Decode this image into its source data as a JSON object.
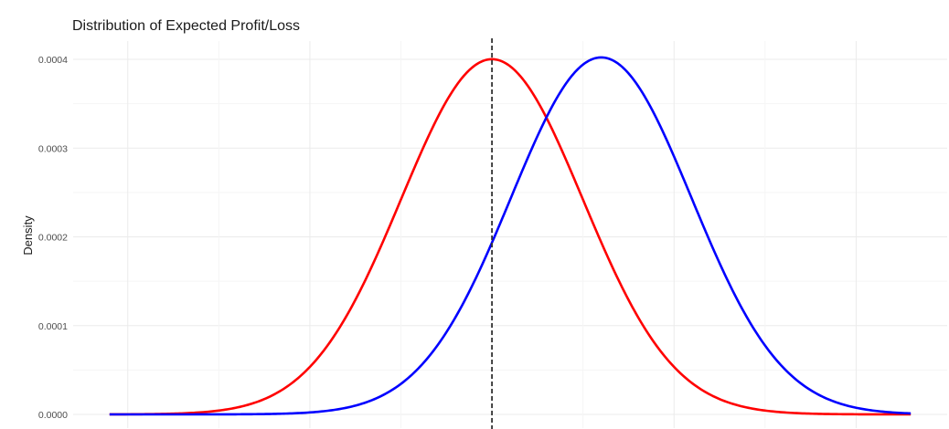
{
  "chart_data": {
    "type": "line",
    "title": "Distribution of Expected Profit/Loss",
    "xlabel": "",
    "ylabel": "Density",
    "xlim": [
      -4600,
      5000
    ],
    "ylim": [
      0,
      0.0004
    ],
    "yticks": [
      0,
      0.0001,
      0.0002,
      0.0003,
      0.0004
    ],
    "ytick_labels": [
      "0.0000",
      "0.0001",
      "0.0002",
      "0.0003",
      "0.0004"
    ],
    "grid": true,
    "legend": "none",
    "vline": {
      "x": 0,
      "style": "dashed",
      "color": "#333333"
    },
    "series": [
      {
        "color": "#ff0000",
        "distribution": "normal",
        "mean": 0,
        "sd": 997,
        "x_range": [
          -4200,
          4600
        ]
      },
      {
        "color": "#0000ff",
        "distribution": "normal",
        "mean": 1200,
        "sd": 992,
        "x_range": [
          -4200,
          4600
        ]
      }
    ]
  }
}
